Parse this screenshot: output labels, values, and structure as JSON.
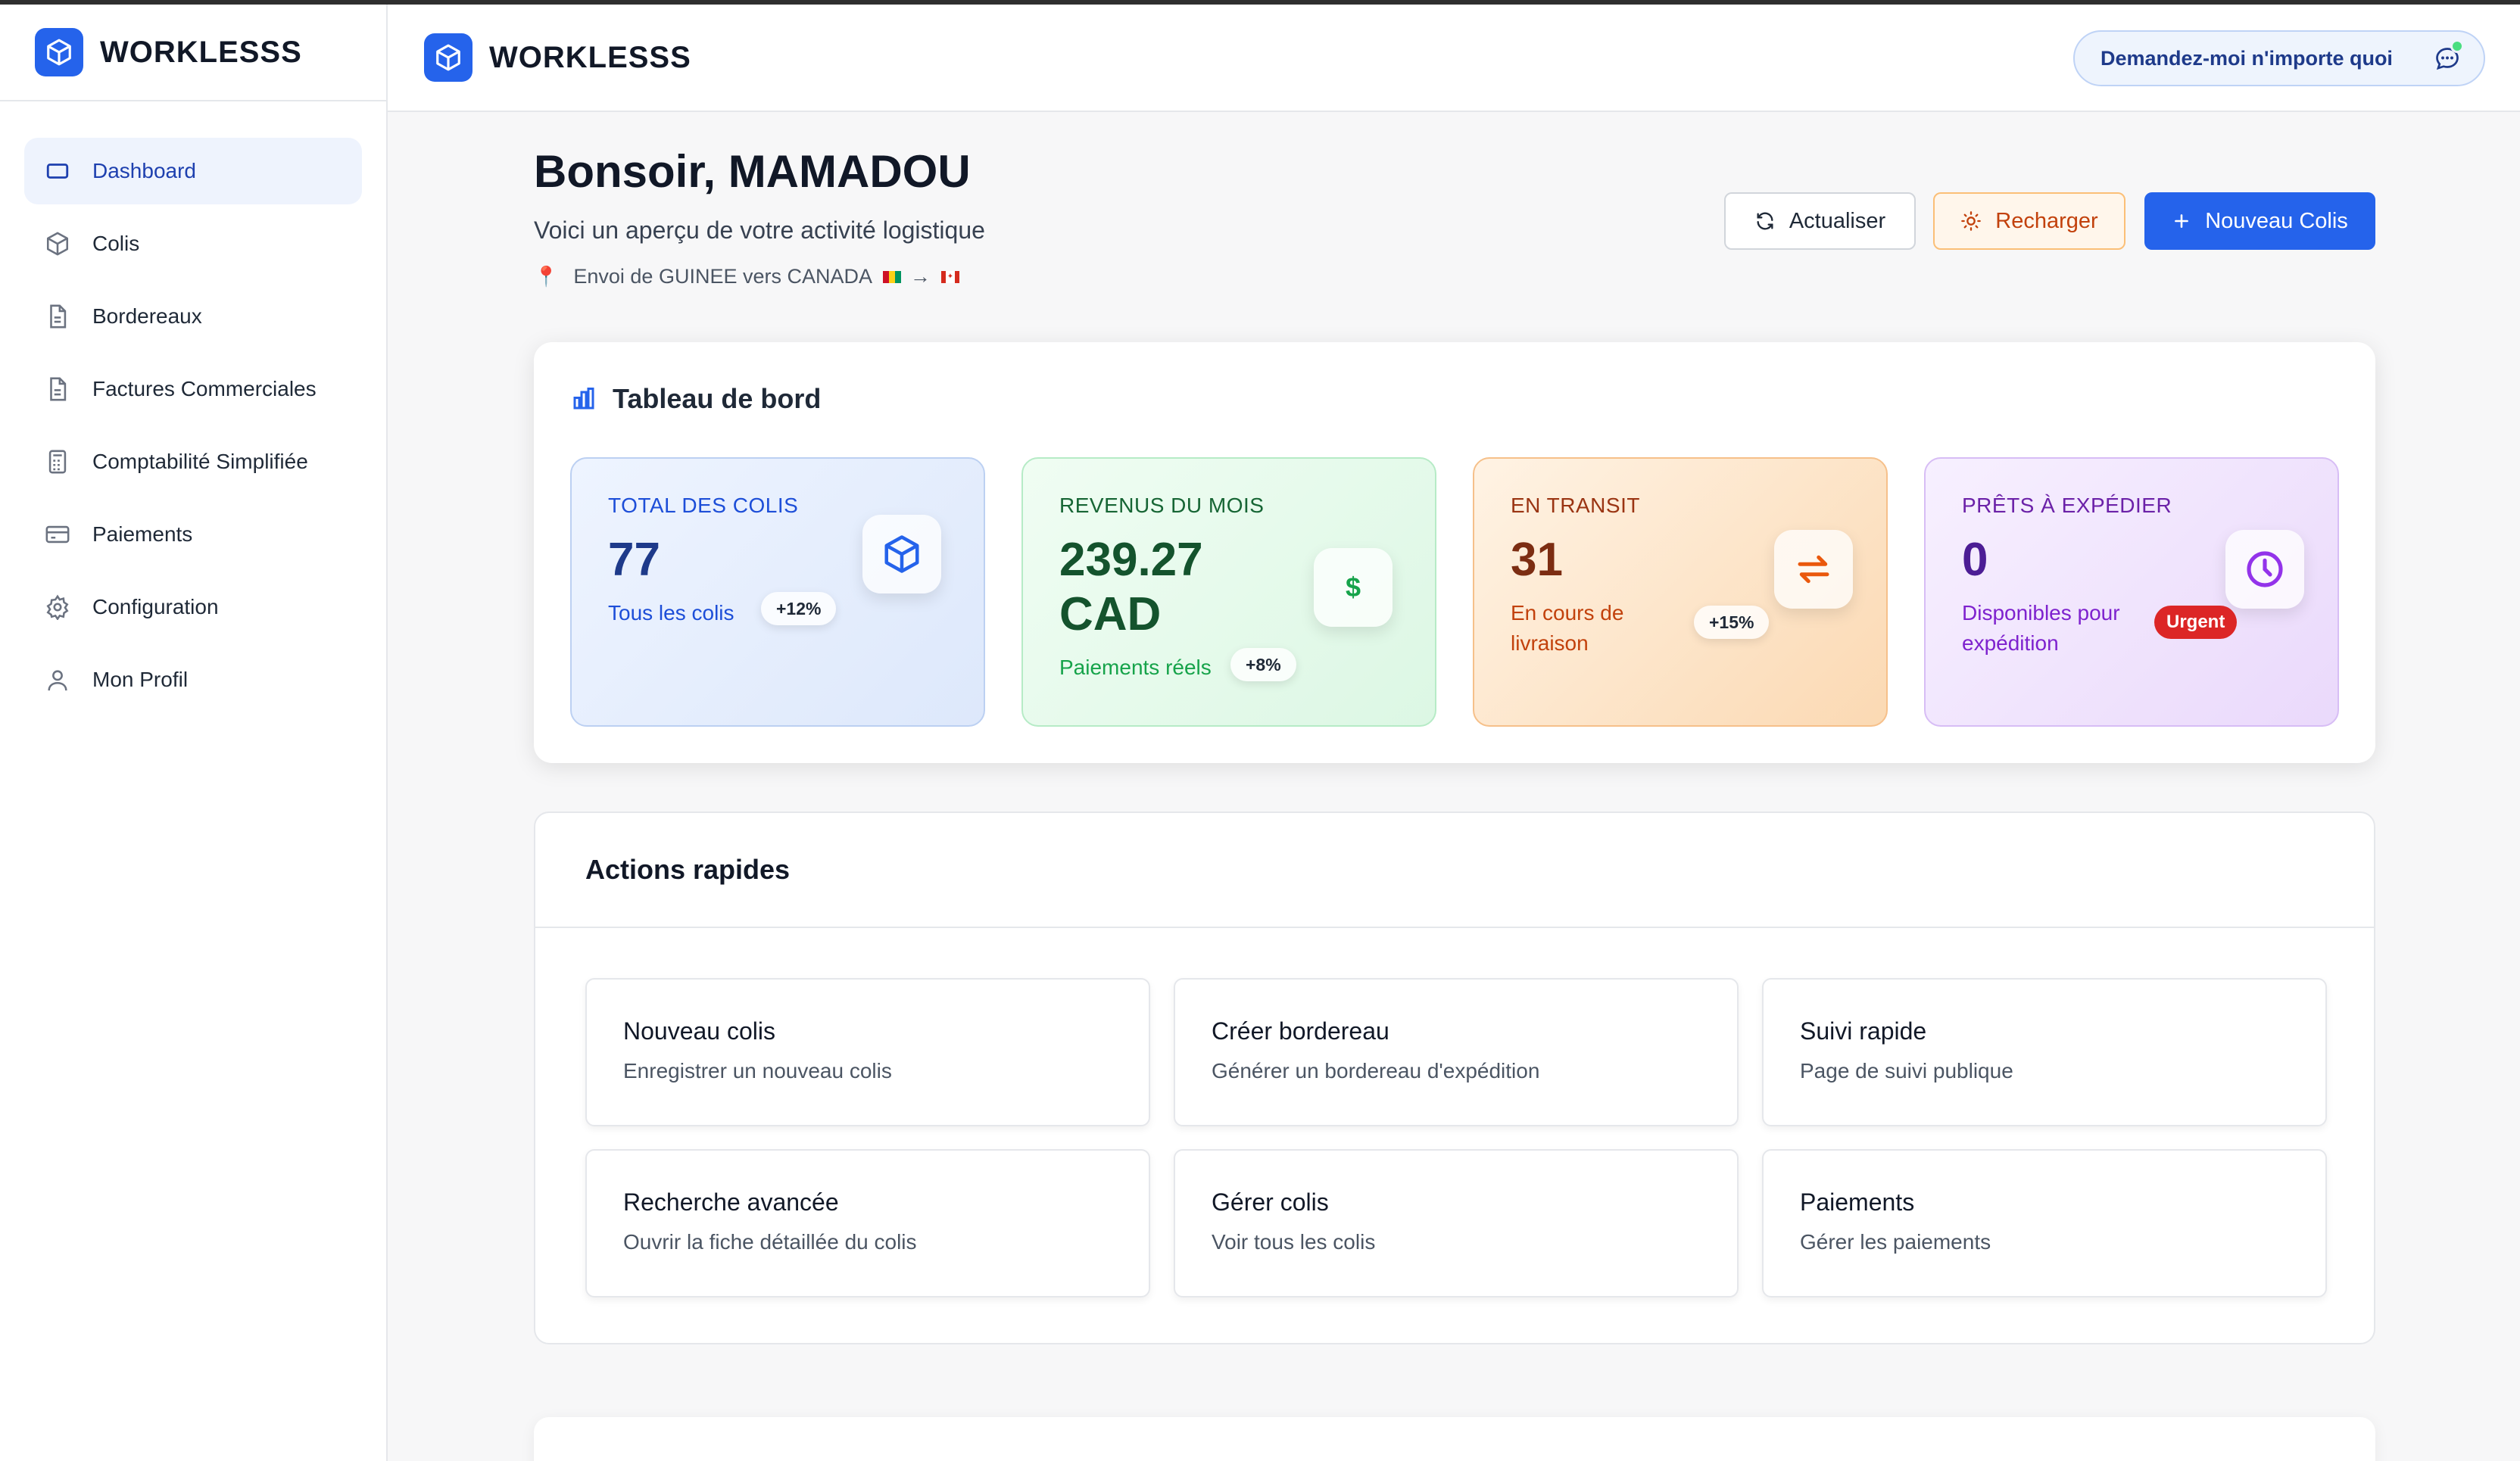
{
  "app": {
    "brand": "WORKLESSS"
  },
  "sidebar": {
    "items": [
      {
        "label": "Dashboard",
        "icon": "monitor-icon",
        "active": true
      },
      {
        "label": "Colis",
        "icon": "package-icon"
      },
      {
        "label": "Bordereaux",
        "icon": "document-icon"
      },
      {
        "label": "Factures Commerciales",
        "icon": "document-icon"
      },
      {
        "label": "Comptabilité Simplifiée",
        "icon": "calculator-icon"
      },
      {
        "label": "Paiements",
        "icon": "credit-card-icon"
      },
      {
        "label": "Configuration",
        "icon": "gear-icon"
      },
      {
        "label": "Mon Profil",
        "icon": "user-icon"
      }
    ]
  },
  "header": {
    "brand": "WORKLESSS",
    "ask_label": "Demandez-moi n'importe quoi"
  },
  "greeting": {
    "title": "Bonsoir, MAMADOU",
    "subtitle": "Voici un aperçu de votre activité logistique",
    "route": "Envoi de GUINEE vers CANADA",
    "route_arrow": "→"
  },
  "buttons": {
    "refresh": "Actualiser",
    "reload": "Recharger",
    "new_parcel": "Nouveau Colis"
  },
  "dashboard": {
    "title": "Tableau de bord",
    "stats": [
      {
        "label": "TOTAL DES COLIS",
        "value": "77",
        "sub": "Tous les colis",
        "badge": "+12%",
        "icon": "package-icon",
        "accent": "#2563eb"
      },
      {
        "label": "REVENUS DU MOIS",
        "value": "239.27 CAD",
        "value_line1": "239.27",
        "value_line2": "CAD",
        "sub": "Paiements réels",
        "badge": "+8%",
        "icon": "dollar-icon",
        "accent": "#16a34a"
      },
      {
        "label": "EN TRANSIT",
        "value": "31",
        "sub": "En cours de livraison",
        "sub_line1": "En cours de",
        "sub_line2": "livraison",
        "badge": "+15%",
        "icon": "arrows-exchange-icon",
        "accent": "#ea580c"
      },
      {
        "label": "PRÊTS À EXPÉDIER",
        "value": "0",
        "sub": "Disponibles pour expédition",
        "sub_line1": "Disponibles pour",
        "sub_line2": "expédition",
        "badge": "Urgent",
        "icon": "clock-icon",
        "accent": "#9333ea"
      }
    ]
  },
  "actions": {
    "title": "Actions rapides",
    "items": [
      {
        "title": "Nouveau colis",
        "desc": "Enregistrer un nouveau colis"
      },
      {
        "title": "Créer bordereau",
        "desc": "Générer un bordereau d'expédition"
      },
      {
        "title": "Suivi rapide",
        "desc": "Page de suivi publique"
      },
      {
        "title": "Recherche avancée",
        "desc": "Ouvrir la fiche détaillée du colis"
      },
      {
        "title": "Gérer colis",
        "desc": "Voir tous les colis"
      },
      {
        "title": "Paiements",
        "desc": "Gérer les paiements"
      }
    ]
  }
}
